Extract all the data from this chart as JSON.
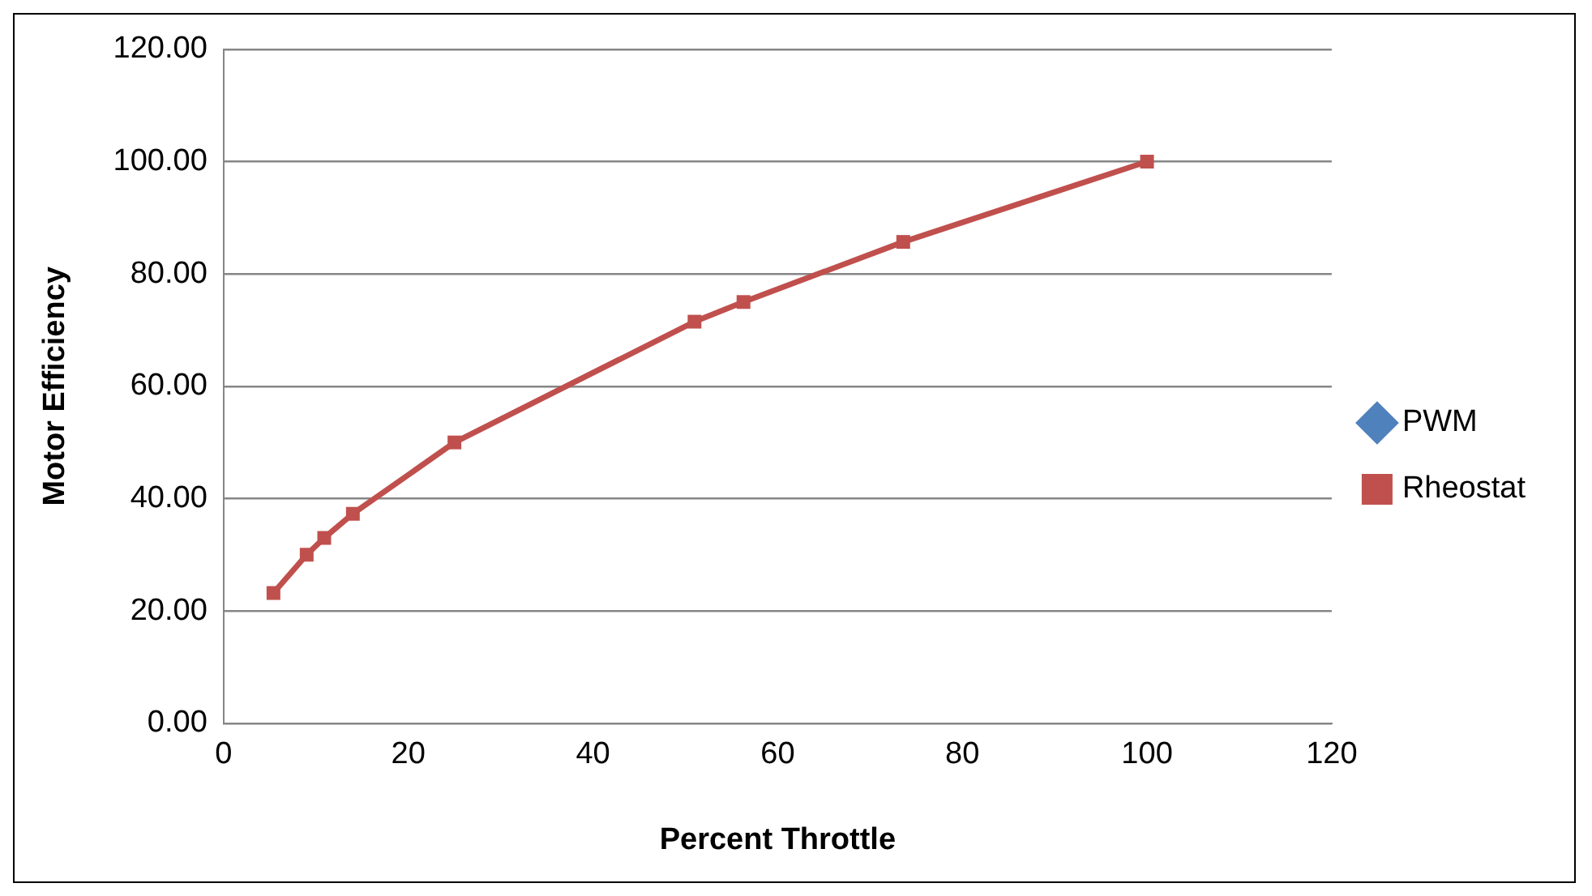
{
  "chart_data": {
    "type": "line",
    "xlabel": "Percent Throttle",
    "ylabel": "Motor Efficiency",
    "x": [
      5.4,
      9,
      10.9,
      14,
      25,
      51,
      56.3,
      73.6,
      100
    ],
    "series": [
      {
        "name": "PWM",
        "color": "#4f81bd",
        "marker": "diamond",
        "values": [
          null,
          null,
          null,
          null,
          null,
          null,
          null,
          null,
          null
        ]
      },
      {
        "name": "Rheostat",
        "color": "#c0504d",
        "marker": "square",
        "values": [
          23.2,
          30,
          33,
          37.3,
          50,
          71.5,
          75,
          85.7,
          100
        ]
      }
    ],
    "xlim": [
      0,
      120
    ],
    "xticks": [
      0,
      20,
      40,
      60,
      80,
      100,
      120
    ],
    "ylim": [
      0,
      120
    ],
    "yticks": [
      {
        "value": 0,
        "label": "0.00"
      },
      {
        "value": 20,
        "label": "20.00"
      },
      {
        "value": 40,
        "label": "40.00"
      },
      {
        "value": 60,
        "label": "60.00"
      },
      {
        "value": 80,
        "label": "80.00"
      },
      {
        "value": 100,
        "label": "100.00"
      },
      {
        "value": 120,
        "label": "120.00"
      }
    ],
    "grid": "y",
    "legend": "right"
  }
}
